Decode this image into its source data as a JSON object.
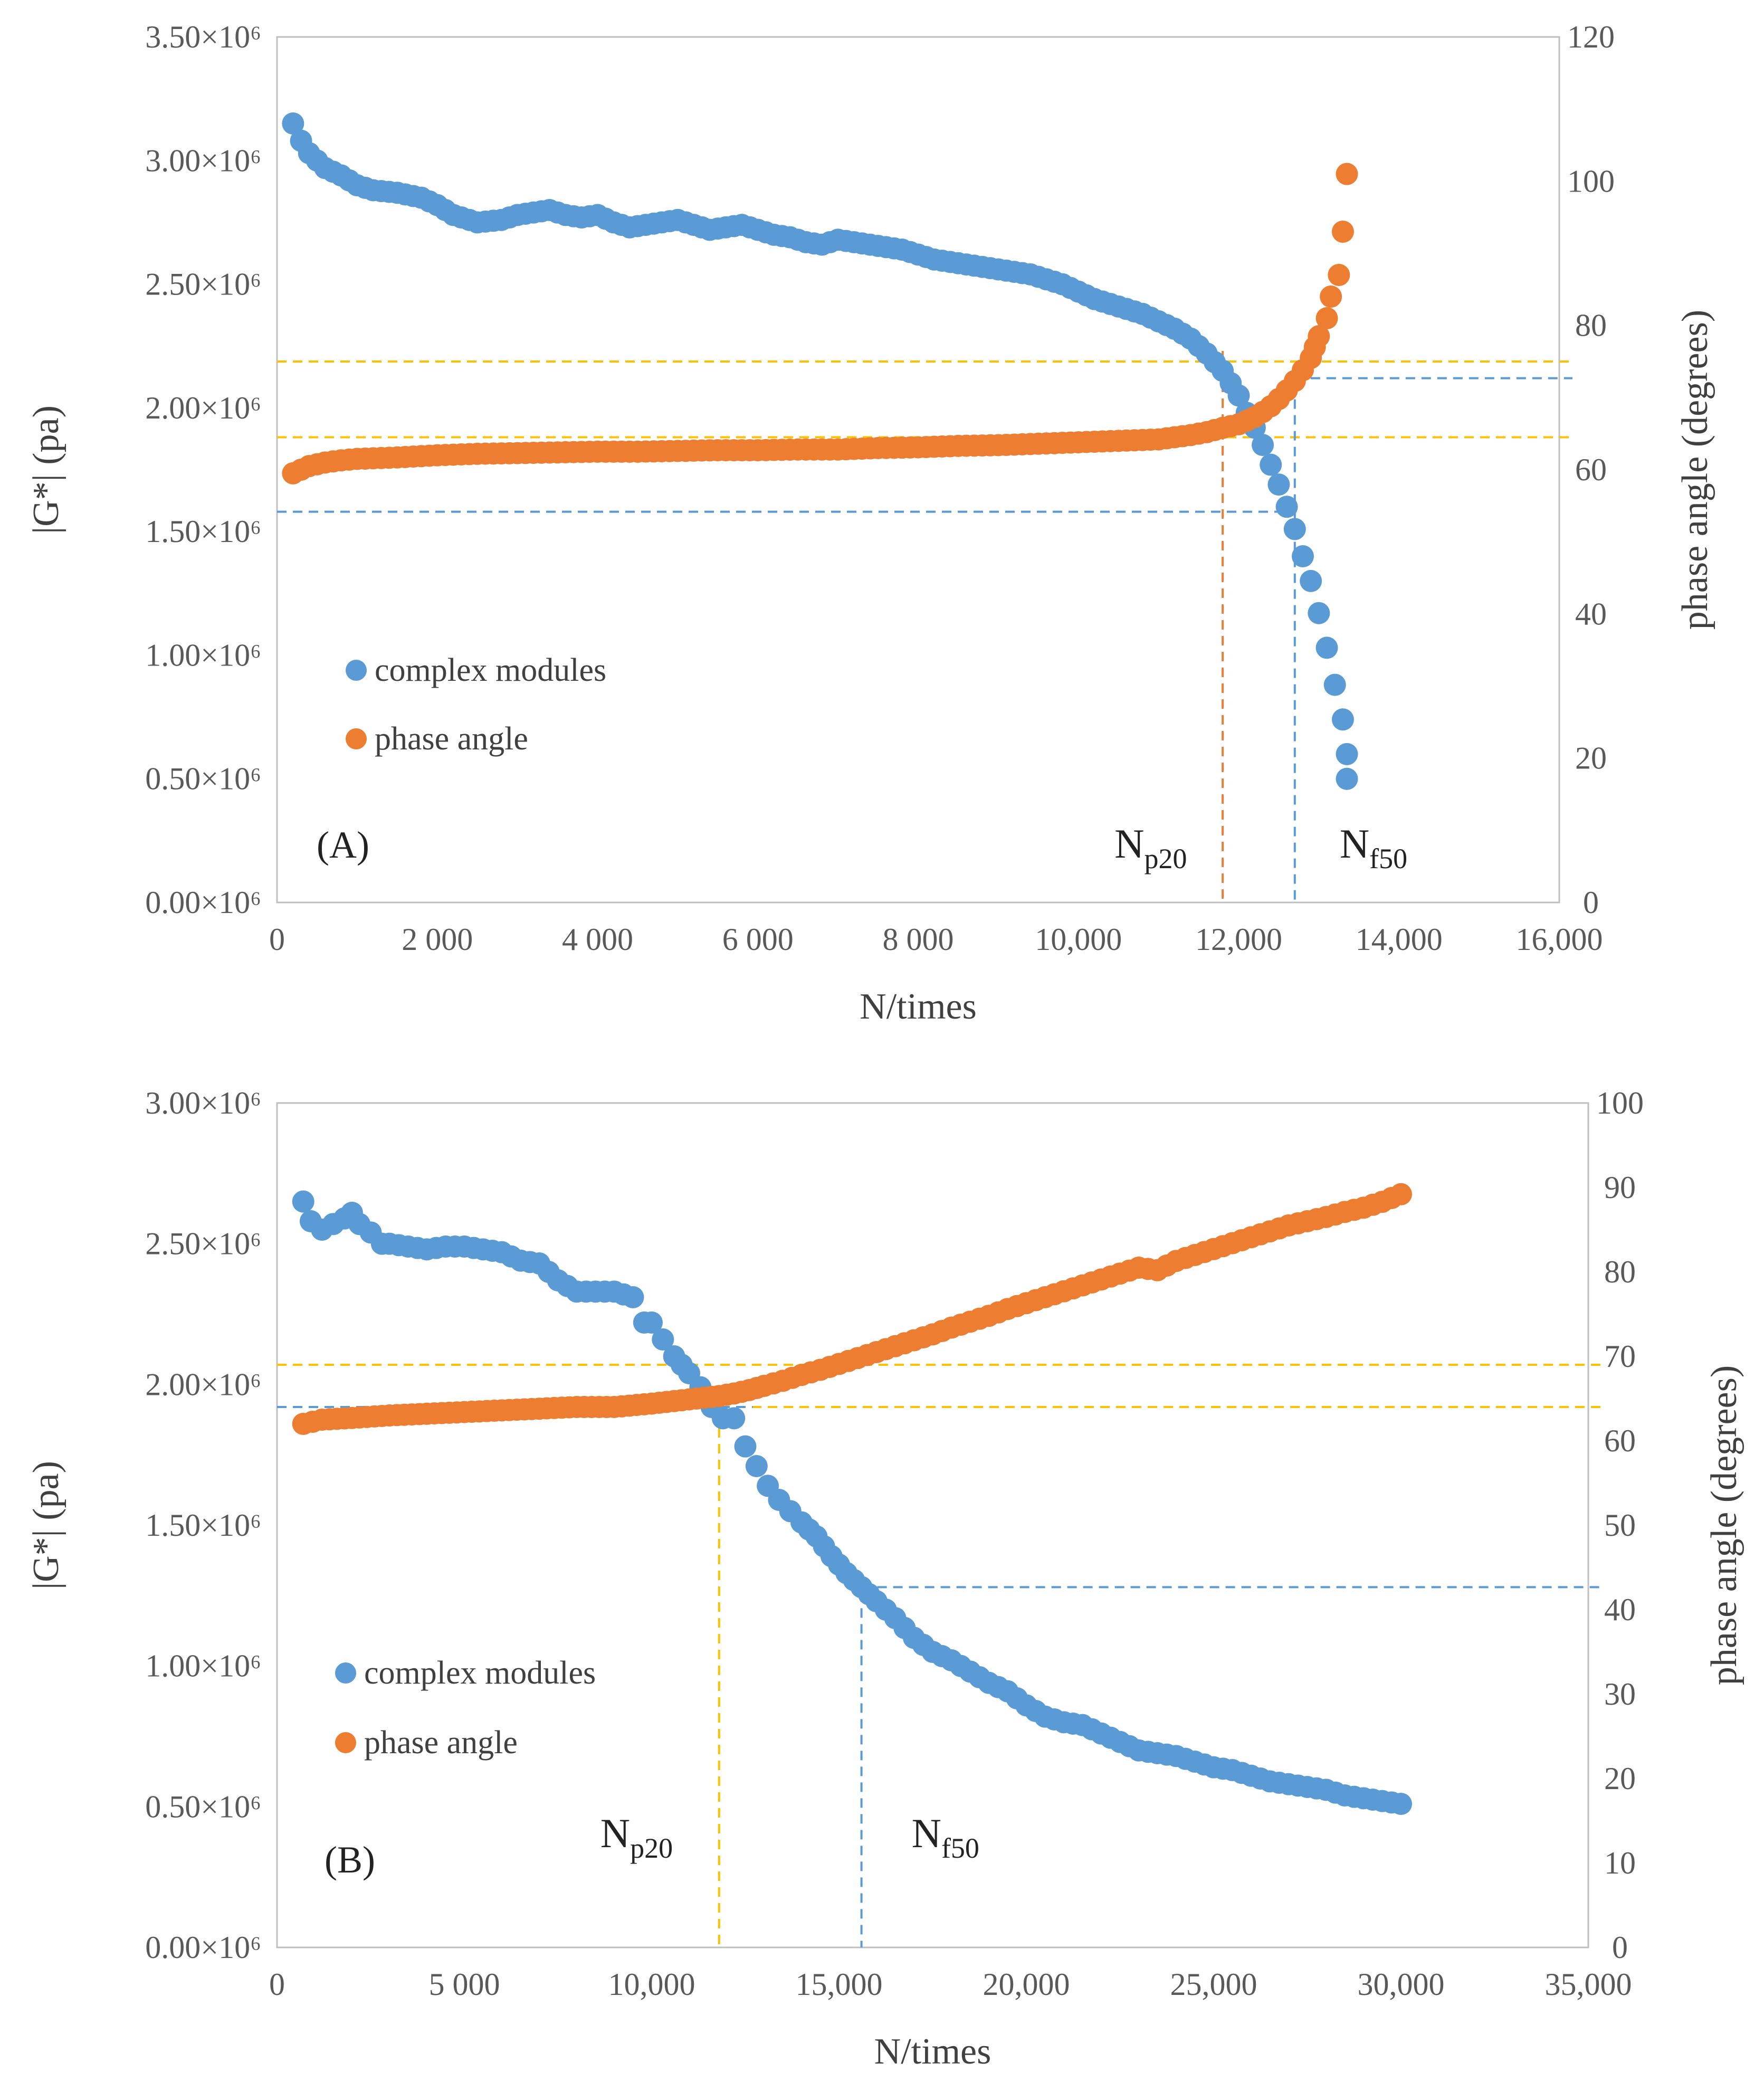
{
  "colors": {
    "modulus": "#5B9BD5",
    "phase": "#ED7D31",
    "guide_yellow": "#FFC000",
    "guide_blue": "#5B9BD5",
    "guide_orange": "#ED7D31",
    "axis": "#BFBFBF"
  },
  "chart_data": [
    {
      "type": "scatter",
      "panel_label": "(A)",
      "xlabel": "N/times",
      "ylabel_left": "|G*| (pa)",
      "ylabel_right": "phase angle (degrees)",
      "xlim": [
        0,
        16000
      ],
      "ylim_left": [
        0,
        3500000
      ],
      "ylim_right": [
        0,
        120
      ],
      "x_ticks": [
        {
          "value": 0,
          "label": "0"
        },
        {
          "value": 2000,
          "label": "2 000"
        },
        {
          "value": 4000,
          "label": "4 000"
        },
        {
          "value": 6000,
          "label": "6 000"
        },
        {
          "value": 8000,
          "label": "8 000"
        },
        {
          "value": 10000,
          "label": "10,000"
        },
        {
          "value": 12000,
          "label": "12,000"
        },
        {
          "value": 14000,
          "label": "14,000"
        },
        {
          "value": 16000,
          "label": "16,000"
        }
      ],
      "y_left_ticks": [
        {
          "value": 0,
          "label": "0.00×10⁶"
        },
        {
          "value": 500000,
          "label": "0.50×10⁶"
        },
        {
          "value": 1000000,
          "label": "1.00×10⁶"
        },
        {
          "value": 1500000,
          "label": "1.50×10⁶"
        },
        {
          "value": 2000000,
          "label": "2.00×10⁶"
        },
        {
          "value": 2500000,
          "label": "2.50×10⁶"
        },
        {
          "value": 3000000,
          "label": "3.00×10⁶"
        },
        {
          "value": 3500000,
          "label": "3.50×10⁶"
        }
      ],
      "y_right_ticks": [
        {
          "value": 0,
          "label": "0"
        },
        {
          "value": 20,
          "label": "20"
        },
        {
          "value": 40,
          "label": "40"
        },
        {
          "value": 60,
          "label": "60"
        },
        {
          "value": 80,
          "label": "80"
        },
        {
          "value": 100,
          "label": "100"
        },
        {
          "value": 120,
          "label": "120"
        }
      ],
      "legend": [
        "complex modules",
        "phase angle"
      ],
      "series": [
        {
          "name": "complex modules",
          "axis": "left",
          "x": [
            200,
            300,
            400,
            600,
            800,
            1000,
            1200,
            1500,
            1800,
            2000,
            2200,
            2500,
            2800,
            3000,
            3200,
            3400,
            3600,
            3800,
            4000,
            4200,
            4400,
            4600,
            4800,
            5000,
            5200,
            5400,
            5600,
            5800,
            6000,
            6200,
            6400,
            6600,
            6800,
            7000,
            7200,
            7400,
            7600,
            7800,
            8000,
            8200,
            8400,
            8600,
            8800,
            9000,
            9200,
            9400,
            9600,
            9800,
            10000,
            10200,
            10400,
            10600,
            10800,
            11000,
            11200,
            11400,
            11600,
            11800,
            11900,
            12000,
            12100,
            12200,
            12300,
            12400,
            12500,
            12600,
            12700,
            12800,
            12900,
            13000,
            13100,
            13200,
            13300,
            13350
          ],
          "values": [
            3150000,
            3080000,
            3030000,
            2970000,
            2940000,
            2900000,
            2880000,
            2870000,
            2850000,
            2820000,
            2780000,
            2750000,
            2760000,
            2780000,
            2790000,
            2800000,
            2780000,
            2770000,
            2780000,
            2750000,
            2730000,
            2740000,
            2750000,
            2760000,
            2740000,
            2720000,
            2730000,
            2740000,
            2720000,
            2700000,
            2690000,
            2670000,
            2660000,
            2680000,
            2670000,
            2660000,
            2650000,
            2640000,
            2620000,
            2600000,
            2590000,
            2580000,
            2570000,
            2560000,
            2550000,
            2540000,
            2520000,
            2500000,
            2470000,
            2440000,
            2420000,
            2400000,
            2380000,
            2350000,
            2320000,
            2280000,
            2220000,
            2150000,
            2100000,
            2050000,
            1980000,
            1920000,
            1850000,
            1770000,
            1690000,
            1600000,
            1510000,
            1400000,
            1300000,
            1170000,
            1030000,
            880000,
            740000,
            600000
          ],
          "extra_points": [
            {
              "x": 13350,
              "y": 500000
            }
          ]
        },
        {
          "name": "phase angle",
          "axis": "right",
          "x": [
            200,
            400,
            600,
            800,
            1000,
            1500,
            2000,
            2500,
            3000,
            3500,
            4000,
            4500,
            5000,
            5500,
            6000,
            6500,
            7000,
            7500,
            8000,
            8500,
            9000,
            9500,
            10000,
            10500,
            11000,
            11200,
            11400,
            11600,
            11800,
            12000,
            12100,
            12200,
            12300,
            12400,
            12500,
            12600,
            12700,
            12800,
            12900,
            12950,
            13000,
            13100,
            13150,
            13250,
            13300,
            13350
          ],
          "values": [
            59.5,
            60.5,
            61,
            61.3,
            61.5,
            61.7,
            62,
            62.2,
            62.3,
            62.4,
            62.5,
            62.5,
            62.6,
            62.7,
            62.7,
            62.8,
            62.8,
            63,
            63.1,
            63.3,
            63.4,
            63.6,
            63.8,
            64,
            64.2,
            64.5,
            64.8,
            65.2,
            65.8,
            66.3,
            66.8,
            67.3,
            68,
            68.8,
            69.8,
            71,
            72.3,
            73.8,
            75.5,
            77,
            78.5,
            81,
            84,
            87,
            93,
            101
          ]
        }
      ],
      "annotations": [
        {
          "base": "N",
          "sub": "p20",
          "x": 11800
        },
        {
          "base": "N",
          "sub": "f50",
          "x": 12700
        }
      ],
      "guides": {
        "np20_x": 11800,
        "nf50_x": 12700,
        "phase_at_np20": 75,
        "phase_at_nf50": 64.5,
        "modulus_at_np20": 1580000,
        "modulus_at_nf50": 2120000
      }
    },
    {
      "type": "scatter",
      "panel_label": "(B)",
      "xlabel": "N/times",
      "ylabel_left": "|G*| (pa)",
      "ylabel_right": "phase angle (degrees)",
      "xlim": [
        0,
        35000
      ],
      "ylim_left": [
        0,
        3000000
      ],
      "ylim_right": [
        0,
        100
      ],
      "x_ticks": [
        {
          "value": 0,
          "label": "0"
        },
        {
          "value": 5000,
          "label": "5 000"
        },
        {
          "value": 10000,
          "label": "10,000"
        },
        {
          "value": 15000,
          "label": "15,000"
        },
        {
          "value": 20000,
          "label": "20,000"
        },
        {
          "value": 25000,
          "label": "25,000"
        },
        {
          "value": 30000,
          "label": "30,000"
        },
        {
          "value": 35000,
          "label": "35,000"
        }
      ],
      "y_left_ticks": [
        {
          "value": 0,
          "label": "0.00×10⁶"
        },
        {
          "value": 500000,
          "label": "0.50×10⁶"
        },
        {
          "value": 1000000,
          "label": "1.00×10⁶"
        },
        {
          "value": 1500000,
          "label": "1.50×10⁶"
        },
        {
          "value": 2000000,
          "label": "2.00×10⁶"
        },
        {
          "value": 2500000,
          "label": "2.50×10⁶"
        },
        {
          "value": 3000000,
          "label": "3.00×10⁶"
        }
      ],
      "y_right_ticks": [
        {
          "value": 0,
          "label": "0"
        },
        {
          "value": 10,
          "label": "10"
        },
        {
          "value": 20,
          "label": "20"
        },
        {
          "value": 30,
          "label": "30"
        },
        {
          "value": 40,
          "label": "40"
        },
        {
          "value": 50,
          "label": "50"
        },
        {
          "value": 60,
          "label": "60"
        },
        {
          "value": 70,
          "label": "70"
        },
        {
          "value": 80,
          "label": "80"
        },
        {
          "value": 90,
          "label": "90"
        },
        {
          "value": 100,
          "label": "100"
        }
      ],
      "legend": [
        "complex modules",
        "phase angle"
      ],
      "series": [
        {
          "name": "complex modules",
          "axis": "left",
          "x": [
            700,
            900,
            1200,
            1500,
            1800,
            2000,
            2200,
            2500,
            2800,
            3000,
            3500,
            4000,
            4500,
            5000,
            5500,
            6000,
            6500,
            7000,
            7500,
            8000,
            8500,
            9000,
            9500,
            9800,
            10000,
            10300,
            10600,
            11000,
            11300,
            11600,
            11900,
            12200,
            12500,
            12800,
            13100,
            13400,
            13700,
            14000,
            14400,
            14800,
            15200,
            15600,
            16000,
            16500,
            17000,
            17500,
            18000,
            18500,
            19000,
            19500,
            20000,
            20500,
            21000,
            21500,
            22000,
            22500,
            23000,
            23500,
            24000,
            24500,
            25000,
            25500,
            26000,
            26500,
            27000,
            27500,
            28000,
            28500,
            29000,
            29500,
            30000
          ],
          "values": [
            2650000,
            2580000,
            2550000,
            2570000,
            2590000,
            2610000,
            2570000,
            2540000,
            2500000,
            2500000,
            2490000,
            2480000,
            2490000,
            2490000,
            2480000,
            2470000,
            2440000,
            2430000,
            2370000,
            2330000,
            2330000,
            2330000,
            2310000,
            2220000,
            2220000,
            2160000,
            2100000,
            2040000,
            1990000,
            1920000,
            1880000,
            1880000,
            1780000,
            1710000,
            1640000,
            1590000,
            1550000,
            1510000,
            1460000,
            1390000,
            1330000,
            1280000,
            1230000,
            1170000,
            1100000,
            1050000,
            1020000,
            980000,
            940000,
            910000,
            860000,
            820000,
            800000,
            790000,
            760000,
            730000,
            700000,
            690000,
            680000,
            660000,
            640000,
            630000,
            610000,
            590000,
            580000,
            570000,
            560000,
            540000,
            530000,
            520000,
            510000
          ]
        },
        {
          "name": "phase angle",
          "axis": "right",
          "x": [
            700,
            1200,
            2000,
            3000,
            4000,
            5000,
            6000,
            7000,
            8000,
            9000,
            10000,
            11000,
            11800,
            12200,
            12600,
            13000,
            13500,
            14000,
            14500,
            15000,
            15500,
            16000,
            16500,
            17000,
            17500,
            18000,
            18500,
            19000,
            19500,
            20000,
            20500,
            21000,
            21500,
            22000,
            22500,
            23000,
            23500,
            24000,
            24500,
            25000,
            25500,
            26000,
            26500,
            27000,
            27500,
            28000,
            28500,
            29000,
            29500,
            30000
          ],
          "values": [
            62,
            62.5,
            62.7,
            63,
            63.2,
            63.4,
            63.6,
            63.8,
            64,
            64,
            64.4,
            64.9,
            65.3,
            65.6,
            66,
            66.5,
            67.1,
            67.8,
            68.4,
            69.1,
            69.8,
            70.5,
            71.2,
            71.9,
            72.6,
            73.4,
            74.1,
            74.8,
            75.6,
            76.3,
            77,
            77.7,
            78.4,
            79.1,
            79.8,
            80.5,
            80.2,
            81.3,
            82,
            82.7,
            83.4,
            84.1,
            84.8,
            85.5,
            86,
            86.5,
            87.1,
            87.6,
            88.3,
            89.2
          ]
        }
      ],
      "annotations": [
        {
          "base": "N",
          "sub": "p20",
          "x": 11800
        },
        {
          "base": "N",
          "sub": "f50",
          "x": 15600
        }
      ],
      "guides": {
        "np20_x": 11800,
        "nf50_x": 15600,
        "phase_at_np20": 64,
        "phase_at_nf50": 69,
        "modulus_at_np20": 1920000,
        "modulus_at_nf50": 1280000
      }
    }
  ]
}
